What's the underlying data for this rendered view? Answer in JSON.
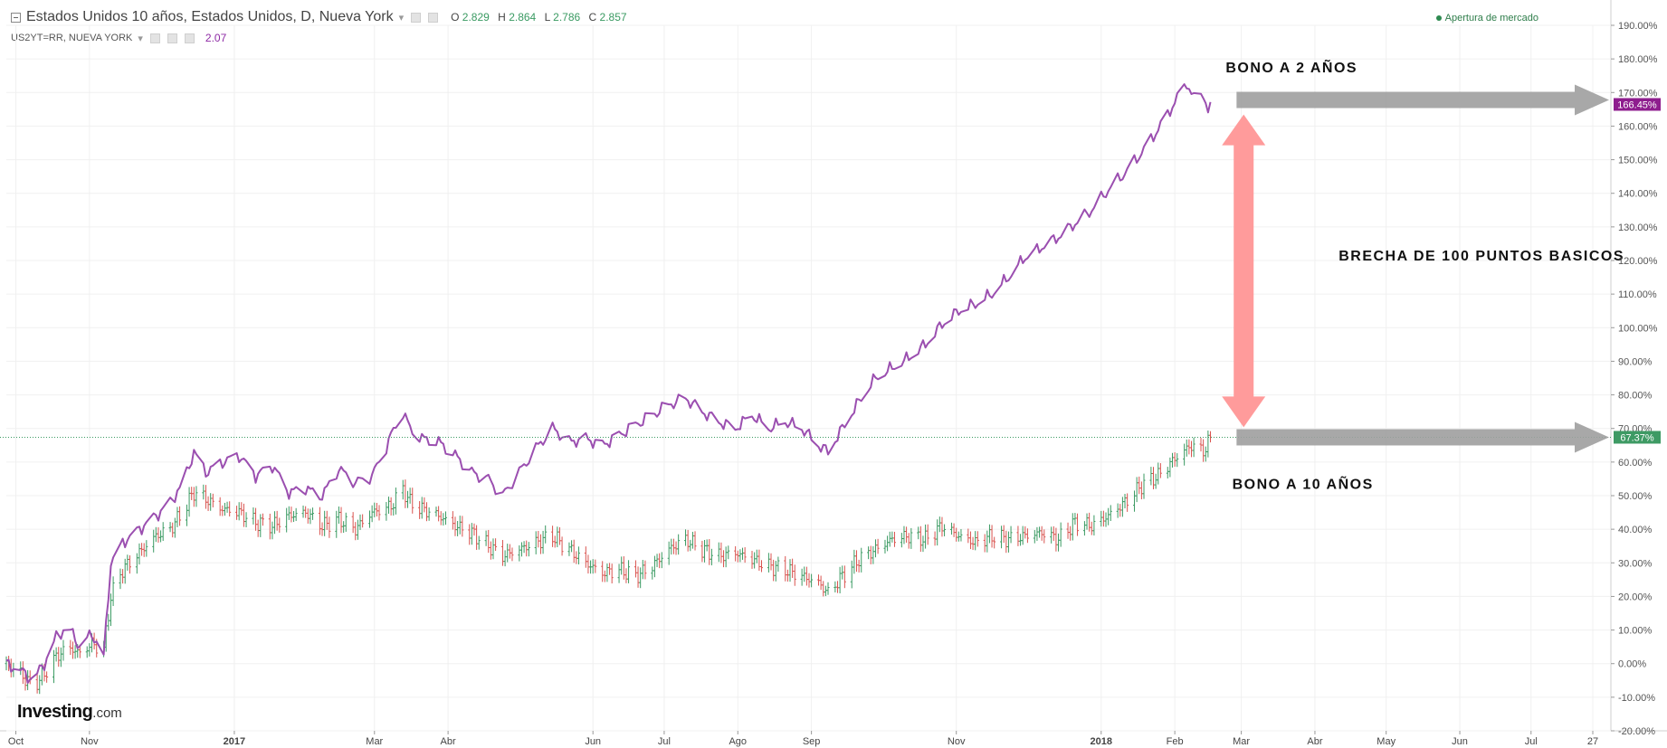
{
  "header": {
    "title": "Estados Unidos 10 años, Estados Unidos, D, Nueva York",
    "ohlc": [
      {
        "label": "O",
        "value": "2.829"
      },
      {
        "label": "H",
        "value": "2.864"
      },
      {
        "label": "L",
        "value": "2.786"
      },
      {
        "label": "C",
        "value": "2.857"
      }
    ],
    "secondary_symbol": "US2YT=RR, NUEVA YORK",
    "secondary_value": "2.07",
    "market_status": "Apertura de mercado"
  },
  "logo": {
    "main": "Investing",
    "suffix": ".com"
  },
  "colors": {
    "two_year_line": "#9b4fb0",
    "up_bar": "#3a9a62",
    "down_bar": "#d9534f",
    "price_line": "#3a9a62",
    "gray_arrow": "#9e9e9e",
    "pink_arrow": "#ff9b9b",
    "tag_purple": "#8e1d8e",
    "tag_green": "#3e9a64"
  },
  "annotations": {
    "bono2": "BONO A 2 AÑOS",
    "brecha": "BRECHA DE 100 PUNTOS BASICOS",
    "bono10": "BONO A 10 AÑOS"
  },
  "chart_data": {
    "type": "line",
    "ylabel": "",
    "ylim": [
      -20,
      190
    ],
    "y_ticks": [
      "-20.00%",
      "-10.00%",
      "0.00%",
      "10.00%",
      "20.00%",
      "30.00%",
      "40.00%",
      "50.00%",
      "60.00%",
      "70.00%",
      "80.00%",
      "90.00%",
      "100.00%",
      "110.00%",
      "120.00%",
      "130.00%",
      "140.00%",
      "150.00%",
      "160.00%",
      "170.00%",
      "180.00%",
      "190.00%"
    ],
    "x_ticks": [
      {
        "label": "Oct",
        "date": "2016-10-01",
        "bold": false
      },
      {
        "label": "Nov",
        "date": "2016-11-01",
        "bold": false
      },
      {
        "label": "2017",
        "date": "2017-01-01",
        "bold": true
      },
      {
        "label": "Mar",
        "date": "2017-03-01",
        "bold": false
      },
      {
        "label": "Abr",
        "date": "2017-04-01",
        "bold": false
      },
      {
        "label": "Jun",
        "date": "2017-06-01",
        "bold": false
      },
      {
        "label": "Jul",
        "date": "2017-07-01",
        "bold": false
      },
      {
        "label": "Ago",
        "date": "2017-08-01",
        "bold": false
      },
      {
        "label": "Sep",
        "date": "2017-09-01",
        "bold": false
      },
      {
        "label": "Nov",
        "date": "2017-11-01",
        "bold": false
      },
      {
        "label": "2018",
        "date": "2018-01-01",
        "bold": true
      },
      {
        "label": "Feb",
        "date": "2018-02-01",
        "bold": false
      },
      {
        "label": "Mar",
        "date": "2018-03-01",
        "bold": false
      },
      {
        "label": "Abr",
        "date": "2018-04-01",
        "bold": false
      },
      {
        "label": "May",
        "date": "2018-05-01",
        "bold": false
      },
      {
        "label": "Jun",
        "date": "2018-06-01",
        "bold": false
      },
      {
        "label": "Jul",
        "date": "2018-07-01",
        "bold": false
      },
      {
        "label": "27",
        "date": "2018-07-27",
        "bold": false
      }
    ],
    "last_value_tags": [
      {
        "series": "US2YT=RR",
        "label": "166.45%",
        "value": 166.45
      },
      {
        "series": "Estados Unidos 10 años",
        "label": "67.37%",
        "value": 67.37
      }
    ],
    "series": [
      {
        "type": "line",
        "points": [
          [
            "2016-09-27",
            0
          ],
          [
            "2016-10-03",
            -2
          ],
          [
            "2016-10-08",
            -5
          ],
          [
            "2016-10-13",
            0
          ],
          [
            "2016-10-18",
            8
          ],
          [
            "2016-10-23",
            11
          ],
          [
            "2016-10-28",
            5
          ],
          [
            "2016-11-02",
            9
          ],
          [
            "2016-11-07",
            2
          ],
          [
            "2016-11-10",
            30
          ],
          [
            "2016-11-15",
            36
          ],
          [
            "2016-11-22",
            40
          ],
          [
            "2016-11-29",
            44
          ],
          [
            "2016-12-05",
            48
          ],
          [
            "2016-12-10",
            53
          ],
          [
            "2016-12-15",
            63
          ],
          [
            "2016-12-20",
            57
          ],
          [
            "2016-12-27",
            60
          ],
          [
            "2017-01-03",
            62
          ],
          [
            "2017-01-10",
            56
          ],
          [
            "2017-01-17",
            59
          ],
          [
            "2017-01-24",
            51
          ],
          [
            "2017-01-31",
            52
          ],
          [
            "2017-02-07",
            50
          ],
          [
            "2017-02-14",
            58
          ],
          [
            "2017-02-21",
            54
          ],
          [
            "2017-02-28",
            56
          ],
          [
            "2017-03-05",
            63
          ],
          [
            "2017-03-08",
            68
          ],
          [
            "2017-03-13",
            75
          ],
          [
            "2017-03-16",
            70
          ],
          [
            "2017-03-21",
            67
          ],
          [
            "2017-03-28",
            66
          ],
          [
            "2017-04-04",
            62
          ],
          [
            "2017-04-11",
            57
          ],
          [
            "2017-04-18",
            55
          ],
          [
            "2017-04-24",
            50
          ],
          [
            "2017-05-01",
            57
          ],
          [
            "2017-05-08",
            64
          ],
          [
            "2017-05-15",
            70
          ],
          [
            "2017-05-22",
            66
          ],
          [
            "2017-05-29",
            67
          ],
          [
            "2017-06-05",
            65
          ],
          [
            "2017-06-12",
            68
          ],
          [
            "2017-06-19",
            71
          ],
          [
            "2017-06-26",
            74
          ],
          [
            "2017-07-03",
            77
          ],
          [
            "2017-07-10",
            79
          ],
          [
            "2017-07-17",
            75
          ],
          [
            "2017-07-24",
            72
          ],
          [
            "2017-07-31",
            70
          ],
          [
            "2017-08-07",
            74
          ],
          [
            "2017-08-14",
            70
          ],
          [
            "2017-08-21",
            72
          ],
          [
            "2017-08-28",
            70
          ],
          [
            "2017-09-04",
            65
          ],
          [
            "2017-09-08",
            63
          ],
          [
            "2017-09-14",
            70
          ],
          [
            "2017-09-21",
            78
          ],
          [
            "2017-09-28",
            85
          ],
          [
            "2017-10-05",
            88
          ],
          [
            "2017-10-12",
            91
          ],
          [
            "2017-10-19",
            95
          ],
          [
            "2017-10-26",
            101
          ],
          [
            "2017-11-02",
            105
          ],
          [
            "2017-11-09",
            107
          ],
          [
            "2017-11-16",
            110
          ],
          [
            "2017-11-23",
            115
          ],
          [
            "2017-11-30",
            121
          ],
          [
            "2017-12-07",
            124
          ],
          [
            "2017-12-14",
            127
          ],
          [
            "2017-12-21",
            131
          ],
          [
            "2017-12-28",
            135
          ],
          [
            "2018-01-04",
            141
          ],
          [
            "2018-01-11",
            146
          ],
          [
            "2018-01-18",
            152
          ],
          [
            "2018-01-25",
            159
          ],
          [
            "2018-02-01",
            167
          ],
          [
            "2018-02-06",
            173
          ],
          [
            "2018-02-09",
            168
          ],
          [
            "2018-02-13",
            170
          ],
          [
            "2018-02-15",
            164
          ],
          [
            "2018-02-17",
            166.45
          ]
        ]
      },
      {
        "type": "ohlc",
        "points": [
          [
            "2016-09-27",
            0
          ],
          [
            "2016-10-03",
            -3
          ],
          [
            "2016-10-08",
            -7
          ],
          [
            "2016-10-13",
            -3
          ],
          [
            "2016-10-18",
            2
          ],
          [
            "2016-10-23",
            5
          ],
          [
            "2016-10-28",
            3
          ],
          [
            "2016-11-02",
            6
          ],
          [
            "2016-11-07",
            4
          ],
          [
            "2016-11-10",
            20
          ],
          [
            "2016-11-15",
            28
          ],
          [
            "2016-11-22",
            33
          ],
          [
            "2016-11-29",
            38
          ],
          [
            "2016-12-05",
            40
          ],
          [
            "2016-12-10",
            45
          ],
          [
            "2016-12-15",
            51
          ],
          [
            "2016-12-20",
            49
          ],
          [
            "2016-12-27",
            46
          ],
          [
            "2017-01-03",
            45
          ],
          [
            "2017-01-10",
            42
          ],
          [
            "2017-01-17",
            41
          ],
          [
            "2017-01-24",
            44
          ],
          [
            "2017-01-31",
            45
          ],
          [
            "2017-02-07",
            41
          ],
          [
            "2017-02-14",
            43
          ],
          [
            "2017-02-21",
            40
          ],
          [
            "2017-02-28",
            45
          ],
          [
            "2017-03-05",
            46
          ],
          [
            "2017-03-08",
            47
          ],
          [
            "2017-03-13",
            52
          ],
          [
            "2017-03-16",
            48
          ],
          [
            "2017-03-21",
            46
          ],
          [
            "2017-03-28",
            44
          ],
          [
            "2017-04-04",
            41
          ],
          [
            "2017-04-11",
            39
          ],
          [
            "2017-04-18",
            35
          ],
          [
            "2017-04-24",
            32
          ],
          [
            "2017-05-01",
            34
          ],
          [
            "2017-05-08",
            36
          ],
          [
            "2017-05-15",
            38
          ],
          [
            "2017-05-22",
            34
          ],
          [
            "2017-05-29",
            30
          ],
          [
            "2017-06-05",
            27
          ],
          [
            "2017-06-12",
            28
          ],
          [
            "2017-06-19",
            26
          ],
          [
            "2017-06-26",
            29
          ],
          [
            "2017-07-03",
            34
          ],
          [
            "2017-07-10",
            37
          ],
          [
            "2017-07-17",
            34
          ],
          [
            "2017-07-24",
            32
          ],
          [
            "2017-07-31",
            33
          ],
          [
            "2017-08-07",
            31
          ],
          [
            "2017-08-14",
            29
          ],
          [
            "2017-08-21",
            28
          ],
          [
            "2017-08-28",
            26
          ],
          [
            "2017-09-04",
            24
          ],
          [
            "2017-09-08",
            21
          ],
          [
            "2017-09-14",
            26
          ],
          [
            "2017-09-21",
            31
          ],
          [
            "2017-09-28",
            34
          ],
          [
            "2017-10-05",
            37
          ],
          [
            "2017-10-12",
            38
          ],
          [
            "2017-10-19",
            37
          ],
          [
            "2017-10-26",
            41
          ],
          [
            "2017-11-02",
            38
          ],
          [
            "2017-11-09",
            36
          ],
          [
            "2017-11-16",
            38
          ],
          [
            "2017-11-23",
            37
          ],
          [
            "2017-11-30",
            38
          ],
          [
            "2017-12-07",
            39
          ],
          [
            "2017-12-14",
            37
          ],
          [
            "2017-12-21",
            42
          ],
          [
            "2017-12-28",
            41
          ],
          [
            "2018-01-04",
            44
          ],
          [
            "2018-01-11",
            48
          ],
          [
            "2018-01-18",
            53
          ],
          [
            "2018-01-25",
            56
          ],
          [
            "2018-02-01",
            61
          ],
          [
            "2018-02-06",
            64
          ],
          [
            "2018-02-09",
            65
          ],
          [
            "2018-02-13",
            63
          ],
          [
            "2018-02-15",
            66
          ],
          [
            "2018-02-17",
            67.37
          ]
        ]
      }
    ]
  }
}
